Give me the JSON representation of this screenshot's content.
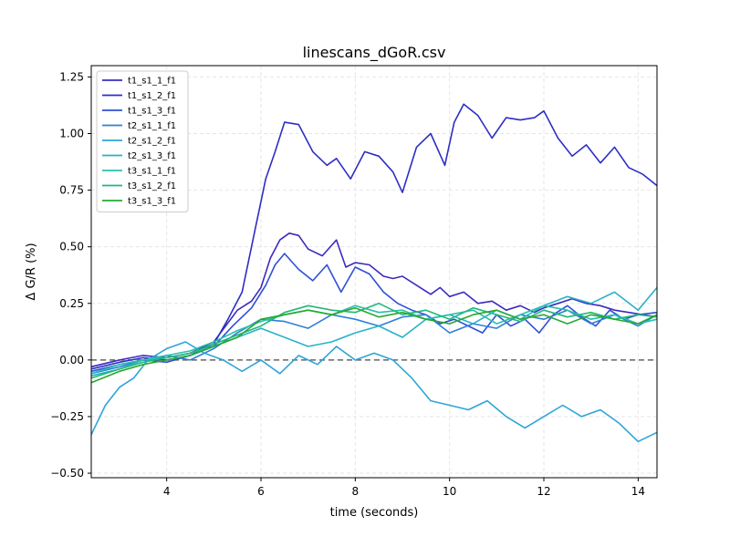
{
  "chart_data": {
    "type": "line",
    "title": "linescans_dGoR.csv",
    "xlabel": "time (seconds)",
    "ylabel": "Δ G/R (%)",
    "xlim": [
      2.4,
      14.4
    ],
    "ylim": [
      -0.52,
      1.3
    ],
    "x_ticks": [
      4,
      6,
      8,
      10,
      12,
      14
    ],
    "y_ticks": [
      -0.5,
      -0.25,
      0.0,
      0.25,
      0.5,
      0.75,
      1.0,
      1.25
    ],
    "x_tick_labels": [
      "4",
      "6",
      "8",
      "10",
      "12",
      "14"
    ],
    "y_tick_labels": [
      "−0.50",
      "−0.25",
      "0.00",
      "0.25",
      "0.50",
      "0.75",
      "1.00",
      "1.25"
    ],
    "grid": true,
    "legend_position": "upper-left",
    "reference_line": {
      "y": 0.0,
      "style": "dashed",
      "color": "#666666"
    },
    "series": [
      {
        "name": "t1_s1_1_f1",
        "color": "#3b2bbf",
        "x": [
          2.4,
          3.0,
          3.5,
          4.0,
          4.5,
          5.0,
          5.5,
          5.8,
          6.0,
          6.2,
          6.4,
          6.6,
          6.8,
          7.0,
          7.3,
          7.6,
          7.8,
          8.0,
          8.3,
          8.6,
          8.8,
          9.0,
          9.3,
          9.6,
          9.8,
          10.0,
          10.3,
          10.6,
          10.9,
          11.2,
          11.5,
          11.8,
          12.0,
          12.3,
          12.6,
          12.9,
          13.2,
          13.5,
          13.8,
          14.1,
          14.4
        ],
        "y": [
          -0.03,
          0.0,
          0.02,
          0.01,
          0.03,
          0.08,
          0.22,
          0.26,
          0.32,
          0.45,
          0.53,
          0.56,
          0.55,
          0.49,
          0.46,
          0.53,
          0.41,
          0.43,
          0.42,
          0.37,
          0.36,
          0.37,
          0.33,
          0.29,
          0.32,
          0.28,
          0.3,
          0.25,
          0.26,
          0.22,
          0.24,
          0.21,
          0.23,
          0.25,
          0.27,
          0.25,
          0.24,
          0.22,
          0.21,
          0.2,
          0.19
        ]
      },
      {
        "name": "t1_s1_2_f1",
        "color": "#2e2ec4",
        "x": [
          2.4,
          3.0,
          3.5,
          4.0,
          4.5,
          5.0,
          5.3,
          5.6,
          5.9,
          6.1,
          6.3,
          6.5,
          6.8,
          7.1,
          7.4,
          7.6,
          7.9,
          8.2,
          8.5,
          8.8,
          9.0,
          9.3,
          9.6,
          9.9,
          10.1,
          10.3,
          10.6,
          10.9,
          11.2,
          11.5,
          11.8,
          12.0,
          12.3,
          12.6,
          12.9,
          13.2,
          13.5,
          13.8,
          14.1,
          14.4
        ],
        "y": [
          -0.04,
          -0.01,
          0.01,
          0.0,
          0.02,
          0.07,
          0.18,
          0.3,
          0.6,
          0.8,
          0.92,
          1.05,
          1.04,
          0.92,
          0.86,
          0.89,
          0.8,
          0.92,
          0.9,
          0.83,
          0.74,
          0.94,
          1.0,
          0.86,
          1.05,
          1.13,
          1.08,
          0.98,
          1.07,
          1.06,
          1.07,
          1.1,
          0.98,
          0.9,
          0.95,
          0.87,
          0.94,
          0.85,
          0.82,
          0.77
        ]
      },
      {
        "name": "t1_s1_3_f1",
        "color": "#2f4fd6",
        "x": [
          2.4,
          3.0,
          3.5,
          4.0,
          4.5,
          5.0,
          5.4,
          5.8,
          6.1,
          6.3,
          6.5,
          6.8,
          7.1,
          7.4,
          7.7,
          8.0,
          8.3,
          8.6,
          8.9,
          9.2,
          9.5,
          9.8,
          10.1,
          10.4,
          10.7,
          11.0,
          11.3,
          11.6,
          11.9,
          12.2,
          12.5,
          12.8,
          13.1,
          13.4,
          13.7,
          14.0,
          14.4
        ],
        "y": [
          -0.05,
          -0.02,
          0.0,
          -0.01,
          0.02,
          0.06,
          0.15,
          0.23,
          0.33,
          0.42,
          0.47,
          0.4,
          0.35,
          0.42,
          0.3,
          0.41,
          0.38,
          0.3,
          0.25,
          0.22,
          0.2,
          0.16,
          0.18,
          0.15,
          0.12,
          0.2,
          0.15,
          0.18,
          0.12,
          0.2,
          0.24,
          0.19,
          0.15,
          0.22,
          0.18,
          0.2,
          0.21
        ]
      },
      {
        "name": "t2_s1_1_f1",
        "color": "#2f7fd8",
        "x": [
          2.4,
          3.0,
          3.5,
          4.0,
          4.5,
          5.0,
          5.5,
          6.0,
          6.5,
          7.0,
          7.5,
          8.0,
          8.5,
          9.0,
          9.5,
          10.0,
          10.5,
          11.0,
          11.5,
          12.0,
          12.5,
          13.0,
          13.5,
          14.0,
          14.4
        ],
        "y": [
          -0.06,
          -0.03,
          0.0,
          0.02,
          0.0,
          0.05,
          0.12,
          0.18,
          0.17,
          0.14,
          0.2,
          0.18,
          0.15,
          0.19,
          0.2,
          0.12,
          0.16,
          0.14,
          0.2,
          0.18,
          0.22,
          0.16,
          0.2,
          0.15,
          0.2
        ]
      },
      {
        "name": "t2_s1_2_f1",
        "color": "#2fa4d8",
        "x": [
          2.4,
          2.7,
          3.0,
          3.3,
          3.6,
          4.0,
          4.4,
          4.8,
          5.2,
          5.6,
          6.0,
          6.4,
          6.8,
          7.2,
          7.6,
          8.0,
          8.4,
          8.8,
          9.2,
          9.6,
          10.0,
          10.4,
          10.8,
          11.2,
          11.6,
          12.0,
          12.4,
          12.8,
          13.2,
          13.6,
          14.0,
          14.4
        ],
        "y": [
          -0.33,
          -0.2,
          -0.12,
          -0.08,
          0.0,
          0.05,
          0.08,
          0.03,
          0.0,
          -0.05,
          0.0,
          -0.06,
          0.02,
          -0.02,
          0.06,
          0.0,
          0.03,
          0.0,
          -0.08,
          -0.18,
          -0.2,
          -0.22,
          -0.18,
          -0.25,
          -0.3,
          -0.25,
          -0.2,
          -0.25,
          -0.22,
          -0.28,
          -0.36,
          -0.32
        ]
      },
      {
        "name": "t2_s1_3_f1",
        "color": "#28b2c8",
        "x": [
          2.4,
          3.0,
          3.5,
          4.0,
          4.5,
          5.0,
          5.5,
          6.0,
          6.5,
          7.0,
          7.5,
          8.0,
          8.5,
          9.0,
          9.5,
          10.0,
          10.5,
          11.0,
          11.5,
          12.0,
          12.5,
          13.0,
          13.5,
          14.0,
          14.4
        ],
        "y": [
          -0.07,
          -0.04,
          0.0,
          0.01,
          0.03,
          0.06,
          0.1,
          0.14,
          0.1,
          0.06,
          0.08,
          0.12,
          0.15,
          0.1,
          0.18,
          0.2,
          0.16,
          0.22,
          0.18,
          0.24,
          0.28,
          0.25,
          0.3,
          0.22,
          0.32
        ]
      },
      {
        "name": "t3_s1_1_f1",
        "color": "#28c0b0",
        "x": [
          2.4,
          3.0,
          3.5,
          4.0,
          4.5,
          5.0,
          5.5,
          6.0,
          6.5,
          7.0,
          7.5,
          8.0,
          8.5,
          9.0,
          9.5,
          10.0,
          10.5,
          11.0,
          11.5,
          12.0,
          12.5,
          13.0,
          13.5,
          14.0,
          14.4
        ],
        "y": [
          -0.06,
          -0.02,
          0.0,
          0.02,
          0.04,
          0.08,
          0.13,
          0.17,
          0.2,
          0.22,
          0.2,
          0.24,
          0.21,
          0.22,
          0.18,
          0.2,
          0.22,
          0.16,
          0.2,
          0.24,
          0.22,
          0.18,
          0.2,
          0.16,
          0.18
        ]
      },
      {
        "name": "t3_s1_2_f1",
        "color": "#22b878",
        "x": [
          2.4,
          3.0,
          3.5,
          4.0,
          4.5,
          5.0,
          5.5,
          6.0,
          6.5,
          7.0,
          7.5,
          8.0,
          8.5,
          9.0,
          9.5,
          10.0,
          10.5,
          11.0,
          11.5,
          12.0,
          12.5,
          13.0,
          13.5,
          14.0,
          14.4
        ],
        "y": [
          -0.08,
          -0.04,
          -0.01,
          0.01,
          0.03,
          0.07,
          0.11,
          0.15,
          0.21,
          0.24,
          0.22,
          0.21,
          0.25,
          0.2,
          0.22,
          0.18,
          0.23,
          0.2,
          0.17,
          0.22,
          0.19,
          0.21,
          0.18,
          0.2,
          0.19
        ]
      },
      {
        "name": "t3_s1_3_f1",
        "color": "#2aa832",
        "x": [
          2.4,
          3.0,
          3.5,
          4.0,
          4.5,
          5.0,
          5.5,
          6.0,
          6.5,
          7.0,
          7.5,
          8.0,
          8.5,
          9.0,
          9.5,
          10.0,
          10.5,
          11.0,
          11.5,
          12.0,
          12.5,
          13.0,
          13.5,
          14.0,
          14.4
        ],
        "y": [
          -0.1,
          -0.05,
          -0.02,
          0.0,
          0.02,
          0.06,
          0.1,
          0.18,
          0.2,
          0.22,
          0.2,
          0.23,
          0.19,
          0.21,
          0.18,
          0.16,
          0.2,
          0.22,
          0.18,
          0.2,
          0.16,
          0.2,
          0.18,
          0.16,
          0.2
        ]
      }
    ]
  }
}
